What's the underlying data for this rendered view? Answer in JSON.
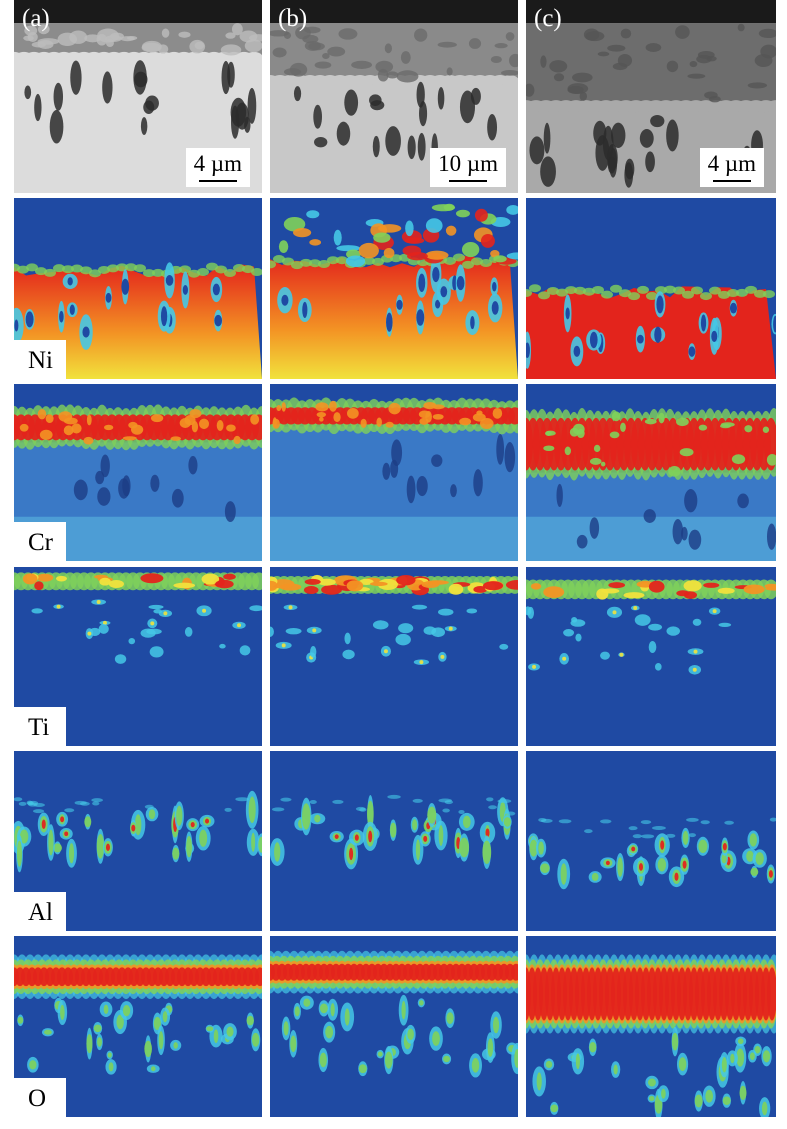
{
  "columns": [
    {
      "label": "(a)",
      "scale_bar": "4 µm"
    },
    {
      "label": "(b)",
      "scale_bar": "10 µm"
    },
    {
      "label": "(c)",
      "scale_bar": "4 µm"
    }
  ],
  "rows": [
    {
      "type": "sem"
    },
    {
      "type": "map",
      "element": "Ni"
    },
    {
      "type": "map",
      "element": "Cr"
    },
    {
      "type": "map",
      "element": "Ti"
    },
    {
      "type": "map",
      "element": "Al"
    },
    {
      "type": "map",
      "element": "O"
    }
  ],
  "colors": {
    "map_background": "#1f4aa3",
    "cyan": "#45c8e6",
    "green": "#7fd15a",
    "yellow": "#f1e23c",
    "orange": "#f39324",
    "red": "#e3241c",
    "sem_dark": "#1a1a1a",
    "sem_light": "#e6e6e6"
  }
}
